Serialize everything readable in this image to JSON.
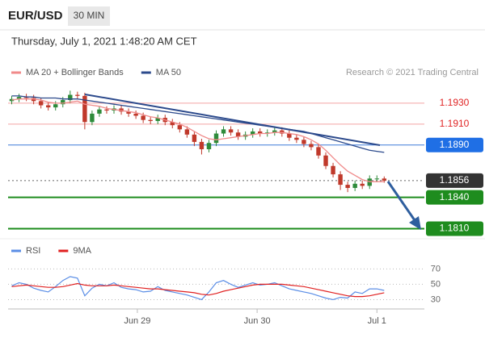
{
  "header": {
    "symbol": "EUR/USD",
    "interval": "30 MIN",
    "datetime": "Thursday, July 1, 2021 1:48:20 AM CET"
  },
  "chart_data": [
    {
      "type": "candlestick",
      "source": "Research © 2021 Trading Central",
      "xlim": [
        0,
        57
      ],
      "ylim": [
        1.1795,
        1.195
      ],
      "up_color": "#2e8b3a",
      "down_color": "#c0392b",
      "candles": {
        "open": [
          1.1932,
          1.1934,
          1.1936,
          1.1935,
          1.1932,
          1.1928,
          1.1926,
          1.1929,
          1.1933,
          1.1938,
          1.1937,
          1.1912,
          1.192,
          1.1924,
          1.1923,
          1.1925,
          1.1922,
          1.192,
          1.1918,
          1.1914,
          1.1913,
          1.1916,
          1.1912,
          1.1909,
          1.1905,
          1.19,
          1.1893,
          1.1886,
          1.1892,
          1.1901,
          1.1905,
          1.1902,
          1.1898,
          1.19,
          1.1903,
          1.1901,
          1.1902,
          1.1904,
          1.1901,
          1.1897,
          1.1895,
          1.1891,
          1.1888,
          1.188,
          1.187,
          1.1862,
          1.1852,
          1.1849,
          1.1853,
          1.1851,
          1.1858,
          1.1858
        ],
        "high": [
          1.1937,
          1.1939,
          1.1939,
          1.1938,
          1.1935,
          1.1931,
          1.1932,
          1.1936,
          1.1942,
          1.1941,
          1.194,
          1.1923,
          1.1927,
          1.1927,
          1.1928,
          1.1928,
          1.1925,
          1.1923,
          1.1921,
          1.1917,
          1.1919,
          1.1919,
          1.1915,
          1.1912,
          1.1908,
          1.1903,
          1.1896,
          1.1895,
          1.1904,
          1.1908,
          1.1908,
          1.1905,
          1.1903,
          1.1906,
          1.1906,
          1.1905,
          1.1908,
          1.1907,
          1.1904,
          1.19,
          1.1898,
          1.1894,
          1.1891,
          1.1883,
          1.1873,
          1.1865,
          1.1855,
          1.1856,
          1.1856,
          1.1861,
          1.1861,
          1.186
        ],
        "low": [
          1.1929,
          1.1931,
          1.1932,
          1.1929,
          1.1925,
          1.1923,
          1.1923,
          1.1926,
          1.193,
          1.1934,
          1.1905,
          1.1909,
          1.1917,
          1.192,
          1.192,
          1.1919,
          1.1917,
          1.1915,
          1.1911,
          1.191,
          1.191,
          1.1909,
          1.1906,
          1.1902,
          1.1897,
          1.1889,
          1.1881,
          1.1883,
          1.1889,
          1.1898,
          1.1899,
          1.1895,
          1.1895,
          1.1897,
          1.1898,
          1.1898,
          1.1899,
          1.1898,
          1.1894,
          1.1892,
          1.1888,
          1.1885,
          1.1877,
          1.1867,
          1.1859,
          1.1847,
          1.1845,
          1.1846,
          1.1848,
          1.1848,
          1.1855,
          1.1854
        ],
        "close": [
          1.1934,
          1.1936,
          1.1935,
          1.1932,
          1.1928,
          1.1926,
          1.1929,
          1.1933,
          1.1938,
          1.1937,
          1.1912,
          1.192,
          1.1924,
          1.1923,
          1.1925,
          1.1922,
          1.192,
          1.1918,
          1.1914,
          1.1913,
          1.1916,
          1.1912,
          1.1909,
          1.1905,
          1.19,
          1.1893,
          1.1886,
          1.1892,
          1.1901,
          1.1905,
          1.1902,
          1.1898,
          1.19,
          1.1903,
          1.1901,
          1.1902,
          1.1904,
          1.1901,
          1.1897,
          1.1895,
          1.1891,
          1.1888,
          1.188,
          1.187,
          1.1862,
          1.1852,
          1.1849,
          1.1853,
          1.1851,
          1.1858,
          1.1858,
          1.1856
        ]
      },
      "series": [
        {
          "name": "MA 20 + Bollinger Bands",
          "color": "#f08a8a",
          "values": [
            1.1933,
            1.1934,
            1.1934,
            1.1934,
            1.1933,
            1.1931,
            1.193,
            1.193,
            1.1931,
            1.1932,
            1.1929,
            1.1928,
            1.1927,
            1.1925,
            1.1924,
            1.1923,
            1.1922,
            1.1921,
            1.1919,
            1.1917,
            1.1916,
            1.1914,
            1.1912,
            1.191,
            1.1907,
            1.1903,
            1.1899,
            1.1896,
            1.1895,
            1.1896,
            1.1897,
            1.1898,
            1.1899,
            1.19,
            1.1901,
            1.1901,
            1.1902,
            1.1902,
            1.1901,
            1.19,
            1.1898,
            1.1895,
            1.1891,
            1.1885,
            1.1878,
            1.1871,
            1.1865,
            1.1861,
            1.1857,
            1.1855,
            1.1855,
            1.1855
          ]
        },
        {
          "name": "MA 50",
          "color": "#2c4a8c",
          "values": [
            1.1937,
            1.1937,
            1.1936,
            1.1936,
            1.1935,
            1.1935,
            1.1935,
            1.1934,
            1.1934,
            1.1934,
            1.1933,
            1.1932,
            1.1931,
            1.193,
            1.1929,
            1.1928,
            1.1927,
            1.1926,
            1.1925,
            1.1924,
            1.1923,
            1.1922,
            1.1921,
            1.192,
            1.1919,
            1.1918,
            1.1917,
            1.1916,
            1.1915,
            1.1914,
            1.1913,
            1.1912,
            1.1911,
            1.191,
            1.1909,
            1.1908,
            1.1907,
            1.1906,
            1.1905,
            1.1904,
            1.1903,
            1.1901,
            1.1899,
            1.1897,
            1.1895,
            1.1893,
            1.1891,
            1.1889,
            1.1887,
            1.1885,
            1.1884,
            1.1883
          ]
        }
      ],
      "levels": [
        {
          "value": 1.193,
          "label": "1.1930",
          "color": "#f4a3a3",
          "text_color": "#e02424",
          "box": false,
          "dash": false,
          "width": 1
        },
        {
          "value": 1.191,
          "label": "1.1910",
          "color": "#f4a3a3",
          "text_color": "#e02424",
          "box": false,
          "dash": false,
          "width": 1
        },
        {
          "value": 1.189,
          "label": "1.1890",
          "color": "#3b78d8",
          "text_color": "#ffffff",
          "box": "#1f6fe5",
          "dash": false,
          "width": 1
        },
        {
          "value": 1.1856,
          "label": "1.1856",
          "color": "#666666",
          "text_color": "#ffffff",
          "box": "#333333",
          "dash": true,
          "width": 1
        },
        {
          "value": 1.184,
          "label": "1.1840",
          "color": "#1e8c1e",
          "text_color": "#ffffff",
          "box": "#1e8c1e",
          "dash": false,
          "width": 2
        },
        {
          "value": 1.181,
          "label": "1.1810",
          "color": "#1e8c1e",
          "text_color": "#ffffff",
          "box": "#1e8c1e",
          "dash": false,
          "width": 2
        }
      ]
    },
    {
      "type": "line",
      "xlim": [
        0,
        57
      ],
      "ylim": [
        21,
        82
      ],
      "yticks": [
        70,
        50,
        30
      ],
      "xticks": [
        {
          "value": 17.7,
          "label": "Jun 29"
        },
        {
          "value": 34.1,
          "label": "Jun 30"
        },
        {
          "value": 50.5,
          "label": "Jul 1"
        }
      ],
      "series": [
        {
          "name": "RSI",
          "color": "#5b8ee6",
          "values": [
            48,
            52,
            50,
            45,
            42,
            40,
            47,
            55,
            60,
            58,
            35,
            45,
            50,
            48,
            52,
            46,
            44,
            43,
            40,
            41,
            47,
            42,
            40,
            38,
            36,
            33,
            30,
            40,
            52,
            55,
            50,
            46,
            49,
            52,
            49,
            50,
            52,
            48,
            44,
            42,
            40,
            38,
            35,
            32,
            30,
            33,
            32,
            40,
            38,
            44,
            44,
            42
          ]
        },
        {
          "name": "9MA",
          "color": "#e02020",
          "values": [
            47,
            48,
            49,
            48,
            47,
            46,
            46,
            47,
            49,
            51,
            49,
            48,
            48,
            48,
            49,
            48,
            47,
            46,
            45,
            44,
            44,
            43,
            42,
            41,
            40,
            39,
            37,
            36,
            38,
            41,
            43,
            45,
            47,
            49,
            50,
            50,
            50,
            50,
            49,
            48,
            47,
            45,
            43,
            41,
            39,
            37,
            35,
            34,
            34,
            35,
            37,
            39
          ]
        }
      ]
    }
  ]
}
